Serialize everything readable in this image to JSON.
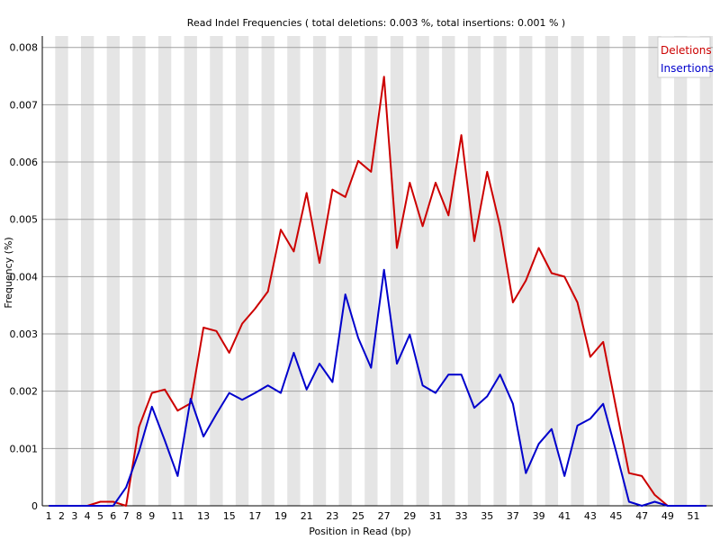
{
  "chart_data": {
    "type": "line",
    "title": "Read Indel Frequencies ( total deletions: 0.003 %, total insertions: 0.001 % )",
    "xlabel": "Position in Read (bp)",
    "ylabel": "Frequency (%)",
    "ylim": [
      0,
      0.0082
    ],
    "yticks": [
      "0",
      "0.001",
      "0.002",
      "0.003",
      "0.004",
      "0.005",
      "0.006",
      "0.007",
      "0.008"
    ],
    "x_tick_labels": [
      "1",
      "2",
      "3",
      "4",
      "5",
      "6",
      "7",
      "8",
      "9",
      "11",
      "13",
      "15",
      "17",
      "19",
      "21",
      "23",
      "25",
      "27",
      "29",
      "31",
      "33",
      "35",
      "37",
      "39",
      "41",
      "43",
      "45",
      "47",
      "49",
      "51"
    ],
    "x": [
      1,
      2,
      3,
      4,
      5,
      6,
      7,
      8,
      9,
      10,
      11,
      12,
      13,
      14,
      15,
      16,
      17,
      18,
      19,
      20,
      21,
      22,
      23,
      24,
      25,
      26,
      27,
      28,
      29,
      30,
      31,
      32,
      33,
      34,
      35,
      36,
      37,
      38,
      39,
      40,
      41,
      42,
      43,
      44,
      45,
      46,
      47,
      48,
      49,
      50,
      51,
      52
    ],
    "grid": true,
    "legend_position": "top-right",
    "series": [
      {
        "name": "Deletions",
        "color": "#cc0000",
        "values": [
          0,
          0,
          0,
          0,
          7e-05,
          7e-05,
          0,
          0.00138,
          0.00197,
          0.00203,
          0.00166,
          0.00179,
          0.00311,
          0.00305,
          0.00267,
          0.00318,
          0.00344,
          0.00374,
          0.00482,
          0.00444,
          0.00546,
          0.00424,
          0.00552,
          0.00539,
          0.00602,
          0.00583,
          0.00749,
          0.0045,
          0.00564,
          0.00488,
          0.00564,
          0.00507,
          0.00647,
          0.00462,
          0.00583,
          0.00488,
          0.00355,
          0.00393,
          0.0045,
          0.00406,
          0.004,
          0.00355,
          0.0026,
          0.00286,
          0.00171,
          0.00057,
          0.00052,
          0.00019,
          0,
          0,
          0,
          0
        ]
      },
      {
        "name": "Insertions",
        "color": "#0000cc",
        "values": [
          0,
          0,
          0,
          0,
          0,
          0,
          0.00032,
          0.00095,
          0.00173,
          0.00114,
          0.00052,
          0.00187,
          0.00121,
          0.0016,
          0.00197,
          0.00185,
          0.00197,
          0.0021,
          0.00197,
          0.00267,
          0.00203,
          0.00248,
          0.00216,
          0.00369,
          0.00293,
          0.00241,
          0.00412,
          0.00248,
          0.00299,
          0.0021,
          0.00197,
          0.00229,
          0.00229,
          0.00171,
          0.00191,
          0.00229,
          0.00178,
          0.00057,
          0.00108,
          0.00134,
          0.00052,
          0.0014,
          0.00152,
          0.00178,
          0.00095,
          7e-05,
          0,
          7e-05,
          0,
          0,
          0,
          0
        ]
      }
    ]
  }
}
